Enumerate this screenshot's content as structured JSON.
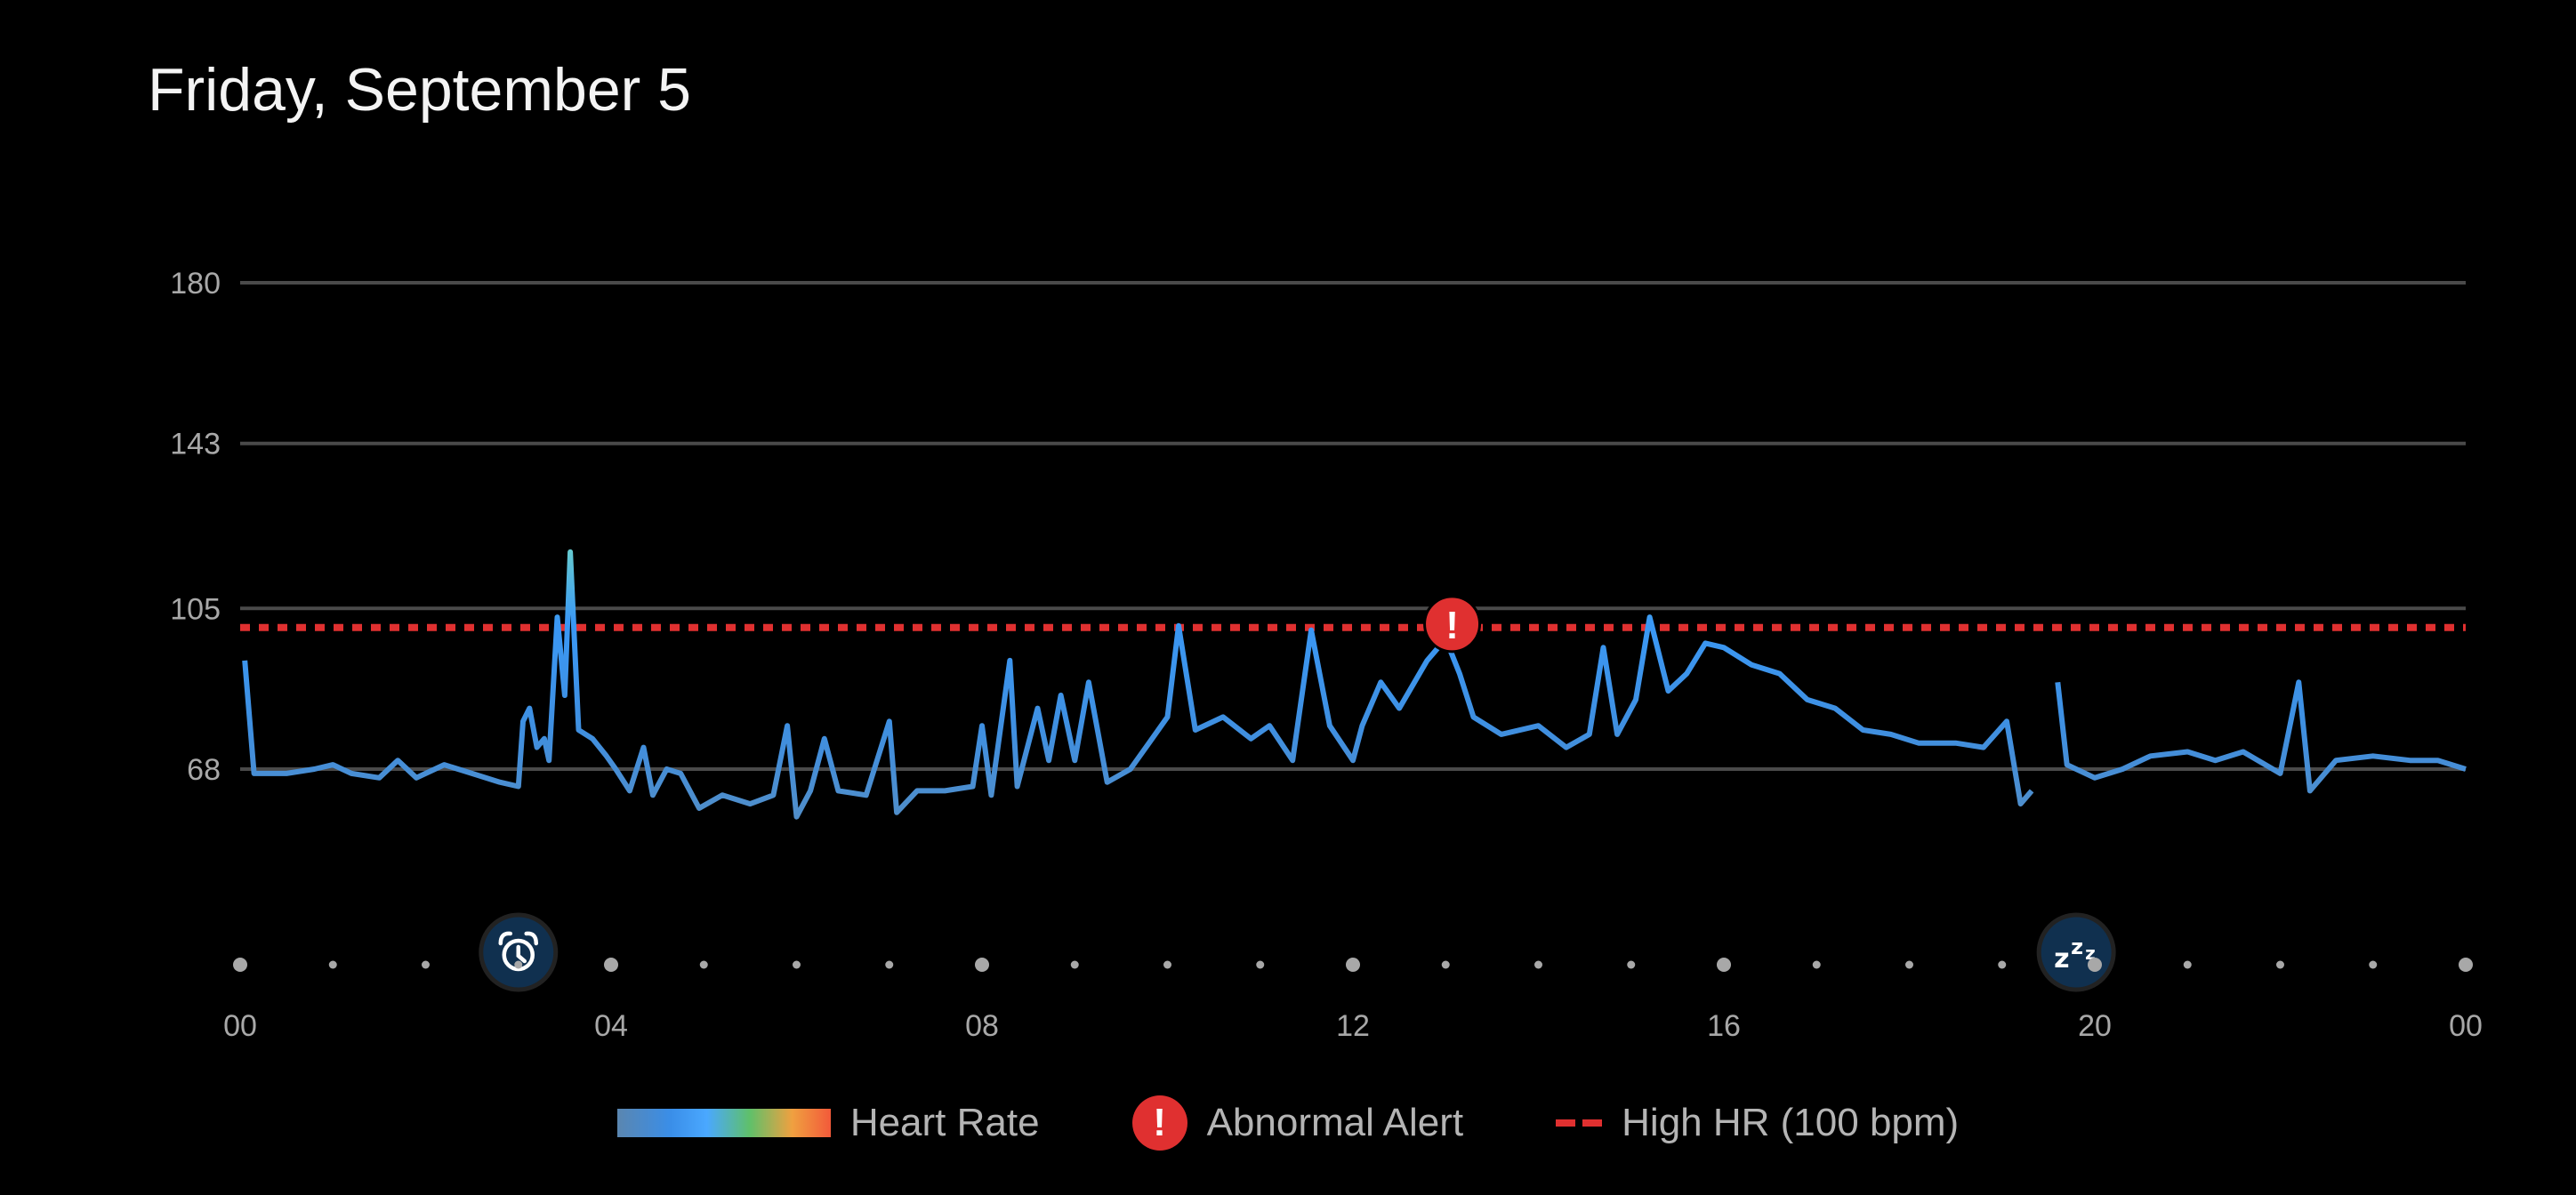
{
  "title": "Friday, September 5",
  "chart_data": {
    "type": "line",
    "title": "Friday, September 5",
    "xlabel": "",
    "ylabel": "",
    "x_range_hours": [
      0,
      24
    ],
    "ylim": [
      30,
      180
    ],
    "y_ticks": [
      180,
      143,
      105,
      68
    ],
    "y_tick_labels": [
      "180",
      "143",
      "105",
      "68"
    ],
    "x_tick_labels": [
      "00",
      "04",
      "08",
      "12",
      "16",
      "20",
      "00"
    ],
    "x_tick_hours": [
      0,
      4,
      8,
      12,
      16,
      20,
      24
    ],
    "grid": true,
    "threshold": {
      "label": "High HR (100 bpm)",
      "value": 100,
      "color": "#e03030"
    },
    "series": [
      {
        "name": "Heart Rate",
        "segments": [
          [
            [
              0.05,
              93
            ],
            [
              0.1,
              80
            ],
            [
              0.15,
              67
            ],
            [
              0.5,
              67
            ],
            [
              0.8,
              68
            ],
            [
              1.0,
              69
            ],
            [
              1.2,
              67
            ],
            [
              1.5,
              66
            ],
            [
              1.7,
              70
            ],
            [
              1.9,
              66
            ],
            [
              2.0,
              67
            ],
            [
              2.2,
              69
            ],
            [
              2.5,
              67
            ],
            [
              2.8,
              65
            ],
            [
              3.0,
              64
            ],
            [
              3.05,
              79
            ],
            [
              3.12,
              82
            ],
            [
              3.2,
              73
            ],
            [
              3.28,
              75
            ],
            [
              3.33,
              70
            ],
            [
              3.42,
              103
            ],
            [
              3.5,
              85
            ],
            [
              3.56,
              118
            ],
            [
              3.65,
              77
            ],
            [
              3.8,
              75
            ],
            [
              3.95,
              71
            ],
            [
              4.05,
              68
            ],
            [
              4.2,
              63
            ],
            [
              4.35,
              73
            ],
            [
              4.45,
              62
            ],
            [
              4.6,
              68
            ],
            [
              4.75,
              67
            ],
            [
              4.95,
              59
            ],
            [
              5.2,
              62
            ],
            [
              5.5,
              60
            ],
            [
              5.75,
              62
            ],
            [
              5.9,
              78
            ],
            [
              6.0,
              57
            ],
            [
              6.15,
              63
            ],
            [
              6.3,
              75
            ],
            [
              6.45,
              63
            ],
            [
              6.75,
              62
            ],
            [
              7.0,
              79
            ],
            [
              7.08,
              58
            ],
            [
              7.3,
              63
            ],
            [
              7.6,
              63
            ],
            [
              7.9,
              64
            ],
            [
              8.0,
              78
            ],
            [
              8.1,
              62
            ],
            [
              8.3,
              93
            ],
            [
              8.38,
              64
            ],
            [
              8.6,
              82
            ],
            [
              8.72,
              70
            ],
            [
              8.85,
              85
            ],
            [
              9.0,
              70
            ],
            [
              9.15,
              88
            ],
            [
              9.35,
              65
            ],
            [
              9.6,
              68
            ],
            [
              9.8,
              74
            ],
            [
              10.0,
              80
            ],
            [
              10.12,
              101
            ],
            [
              10.3,
              77
            ],
            [
              10.6,
              80
            ],
            [
              10.9,
              75
            ],
            [
              11.1,
              78
            ],
            [
              11.35,
              70
            ],
            [
              11.55,
              100
            ],
            [
              11.75,
              78
            ],
            [
              12.0,
              70
            ],
            [
              12.1,
              78
            ],
            [
              12.3,
              88
            ],
            [
              12.5,
              82
            ],
            [
              12.8,
              93
            ],
            [
              13.0,
              98
            ],
            [
              13.15,
              90
            ],
            [
              13.3,
              80
            ],
            [
              13.6,
              76
            ],
            [
              14.0,
              78
            ],
            [
              14.3,
              73
            ],
            [
              14.55,
              76
            ],
            [
              14.7,
              96
            ],
            [
              14.85,
              76
            ],
            [
              15.05,
              84
            ],
            [
              15.2,
              103
            ],
            [
              15.4,
              86
            ],
            [
              15.6,
              90
            ],
            [
              15.8,
              97
            ],
            [
              16.0,
              96
            ],
            [
              16.3,
              92
            ],
            [
              16.6,
              90
            ],
            [
              16.9,
              84
            ],
            [
              17.2,
              82
            ],
            [
              17.5,
              77
            ],
            [
              17.8,
              76
            ],
            [
              18.1,
              74
            ],
            [
              18.5,
              74
            ],
            [
              18.8,
              73
            ],
            [
              19.05,
              79
            ],
            [
              19.2,
              60
            ],
            [
              19.32,
              63
            ]
          ],
          [
            [
              19.6,
              88
            ],
            [
              19.7,
              69
            ],
            [
              20.0,
              66
            ],
            [
              20.3,
              68
            ],
            [
              20.6,
              71
            ],
            [
              21.0,
              72
            ],
            [
              21.3,
              70
            ],
            [
              21.6,
              72
            ],
            [
              22.0,
              67
            ],
            [
              22.2,
              88
            ],
            [
              22.32,
              63
            ],
            [
              22.6,
              70
            ],
            [
              23.0,
              71
            ],
            [
              23.4,
              70
            ],
            [
              23.7,
              70
            ],
            [
              24.0,
              68
            ]
          ]
        ]
      }
    ],
    "markers": [
      {
        "type": "abnormal-alert",
        "hour": 13.07,
        "value": 101
      },
      {
        "type": "alarm",
        "hour": 3.0
      },
      {
        "type": "sleep",
        "hour": 19.8
      }
    ],
    "legend": {
      "placement": "bottom",
      "entries": [
        "Heart Rate",
        "Abnormal Alert",
        "High HR (100 bpm)"
      ]
    }
  },
  "legend": {
    "heart_rate": "Heart Rate",
    "alert": "Abnormal Alert",
    "high_hr": "High HR (100 bpm)",
    "alert_glyph": "!"
  },
  "colors": {
    "line": "#3a8ee8",
    "alert": "#e03030",
    "marker_bg": "#10304f"
  }
}
